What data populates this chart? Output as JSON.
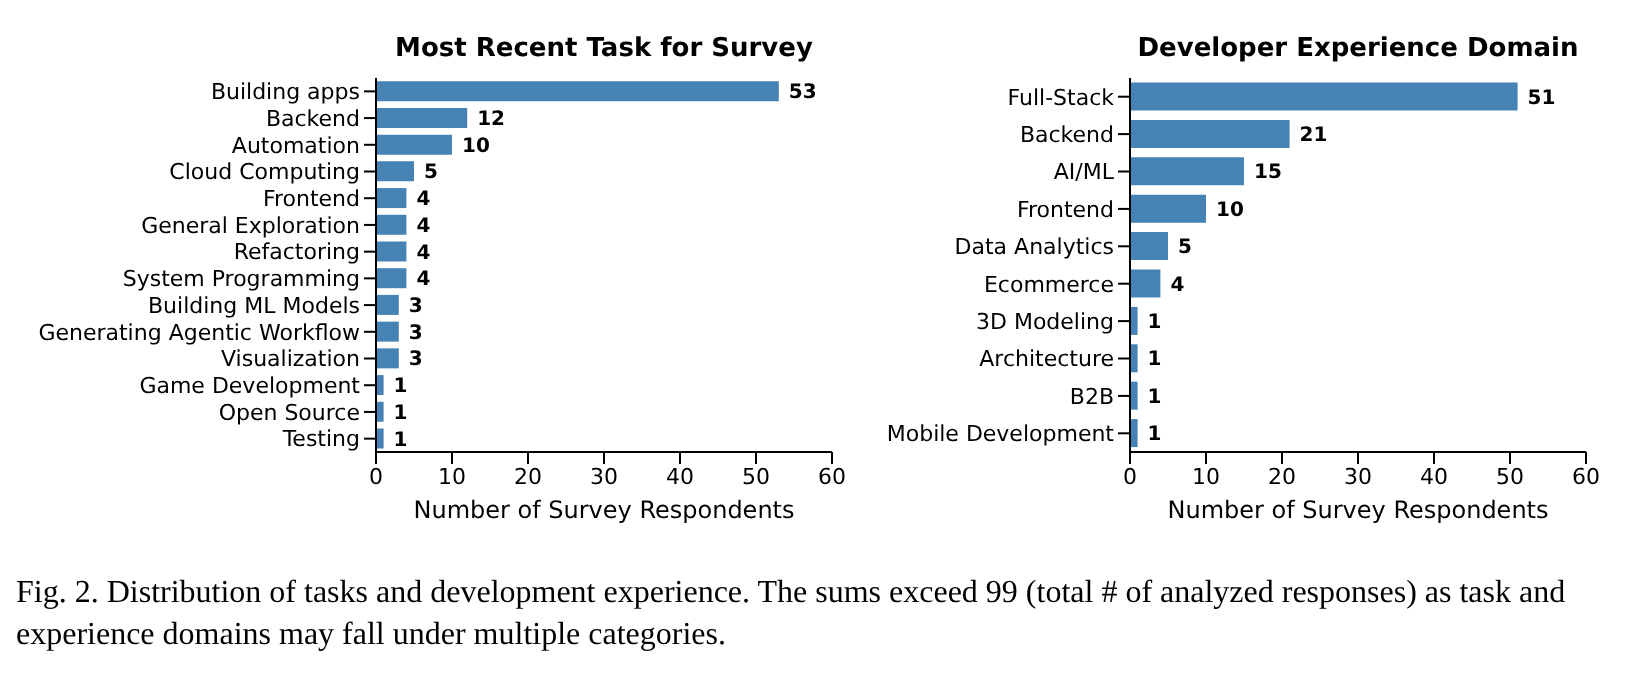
{
  "chart_data": [
    {
      "type": "bar",
      "orientation": "horizontal",
      "title": "Most Recent Task for Survey",
      "xlabel": "Number of Survey Respondents",
      "categories": [
        "Building apps",
        "Backend",
        "Automation",
        "Cloud Computing",
        "Frontend",
        "General Exploration",
        "Refactoring",
        "System Programming",
        "Building ML Models",
        "Generating Agentic Workflow",
        "Visualization",
        "Game Development",
        "Open Source",
        "Testing"
      ],
      "values": [
        53,
        12,
        10,
        5,
        4,
        4,
        4,
        4,
        3,
        3,
        3,
        1,
        1,
        1
      ],
      "color": "#4682b4",
      "xlim": [
        0,
        60
      ],
      "xticks": [
        0,
        10,
        20,
        30,
        40,
        50,
        60
      ],
      "data_labels": true,
      "annotations": [
        "Fig. 2.  Distribution of tasks and development experience. The sums exceed 99 (total # of analyzed responses) as task and experience domains may fall under multiple categories."
      ]
    },
    {
      "type": "bar",
      "orientation": "horizontal",
      "title": "Developer Experience Domain",
      "xlabel": "Number of Survey Respondents",
      "categories": [
        "Full-Stack",
        "Backend",
        "AI/ML",
        "Frontend",
        "Data Analytics",
        "Ecommerce",
        "3D Modeling",
        "Architecture",
        "B2B",
        "Mobile Development"
      ],
      "values": [
        51,
        21,
        15,
        10,
        5,
        4,
        1,
        1,
        1,
        1
      ],
      "color": "#4682b4",
      "xlim": [
        0,
        60
      ],
      "xticks": [
        0,
        10,
        20,
        30,
        40,
        50,
        60
      ],
      "data_labels": true
    }
  ]
}
